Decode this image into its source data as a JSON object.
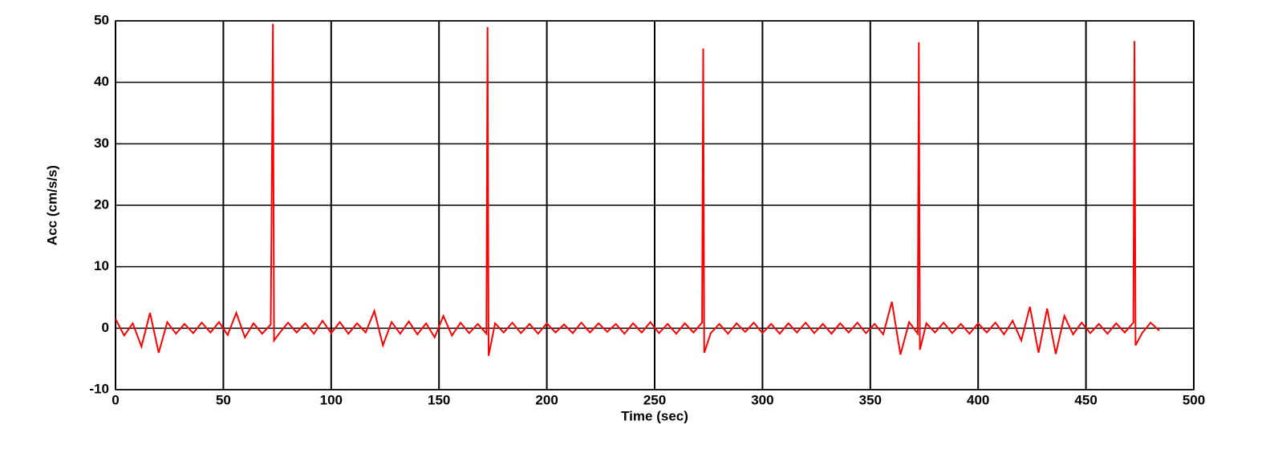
{
  "chart_data": {
    "type": "line",
    "xlabel": "Time (sec)",
    "ylabel": "Acc (cm/s/s)",
    "xlim": [
      0,
      500
    ],
    "ylim": [
      -10,
      50
    ],
    "xticks": [
      0,
      50,
      100,
      150,
      200,
      250,
      300,
      350,
      400,
      450,
      500
    ],
    "yticks": [
      -10,
      0,
      10,
      20,
      30,
      40,
      50
    ],
    "grid": true,
    "x": [
      0,
      4,
      8,
      12,
      16,
      20,
      24,
      28,
      32,
      36,
      40,
      44,
      48,
      52,
      56,
      60,
      64,
      68,
      72,
      73,
      73.5,
      76,
      80,
      84,
      88,
      92,
      96,
      100,
      104,
      108,
      112,
      116,
      120,
      124,
      128,
      132,
      136,
      140,
      144,
      148,
      152,
      156,
      160,
      164,
      168,
      172,
      172.5,
      173,
      176,
      180,
      184,
      188,
      192,
      196,
      200,
      204,
      208,
      212,
      216,
      220,
      224,
      228,
      232,
      236,
      240,
      244,
      248,
      252,
      256,
      260,
      264,
      268,
      272,
      272.5,
      273,
      276,
      280,
      284,
      288,
      292,
      296,
      300,
      304,
      308,
      312,
      316,
      320,
      324,
      328,
      332,
      336,
      340,
      344,
      348,
      352,
      356,
      360,
      364,
      368,
      372,
      372.5,
      373,
      376,
      380,
      384,
      388,
      392,
      396,
      400,
      404,
      408,
      412,
      416,
      420,
      424,
      428,
      432,
      436,
      440,
      444,
      448,
      452,
      456,
      460,
      464,
      468,
      472,
      472.5,
      473,
      476,
      480,
      484
    ],
    "series": [
      {
        "name": "Acc",
        "color": "#ff0000",
        "values": [
          1.5,
          -1.2,
          0.8,
          -3,
          2.5,
          -4,
          1,
          -0.9,
          0.7,
          -0.8,
          0.9,
          -0.7,
          1,
          -1.1,
          2.5,
          -1.5,
          0.8,
          -0.9,
          0.6,
          49.5,
          -2,
          -0.8,
          0.9,
          -0.7,
          0.8,
          -0.9,
          1.2,
          -0.8,
          1,
          -0.9,
          0.8,
          -0.7,
          2.8,
          -2.8,
          1,
          -0.9,
          1.1,
          -1,
          0.8,
          -1.5,
          2,
          -1.2,
          0.9,
          -0.8,
          0.7,
          -0.9,
          49,
          -4.5,
          0.8,
          -0.7,
          0.9,
          -0.8,
          0.7,
          -0.9,
          0.8,
          -0.7,
          0.6,
          -0.8,
          0.9,
          -0.7,
          0.8,
          -0.6,
          0.7,
          -0.9,
          0.8,
          -0.7,
          1,
          -0.8,
          0.7,
          -0.9,
          0.8,
          -0.7,
          0.9,
          45.5,
          -4,
          -0.8,
          0.7,
          -0.9,
          0.8,
          -0.6,
          0.9,
          -0.8,
          0.7,
          -0.9,
          0.8,
          -0.7,
          0.9,
          -0.8,
          0.7,
          -0.9,
          0.8,
          -0.7,
          0.9,
          -0.8,
          0.7,
          -1,
          4.3,
          -4.3,
          1,
          -0.9,
          46.5,
          -3.5,
          0.8,
          -0.7,
          0.9,
          -0.8,
          0.7,
          -0.9,
          0.8,
          -0.7,
          0.9,
          -1,
          1.2,
          -2,
          3.5,
          -4,
          3.2,
          -4.2,
          2,
          -1,
          0.9,
          -0.8,
          0.7,
          -0.9,
          0.8,
          -0.7,
          0.9,
          46.7,
          -2.8,
          -0.8,
          0.9,
          -0.4
        ]
      }
    ]
  }
}
